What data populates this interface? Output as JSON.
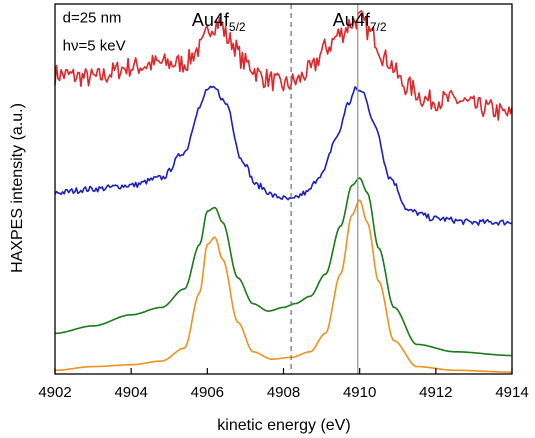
{
  "chart_data": {
    "type": "line",
    "xlabel": "kinetic energy (eV)",
    "ylabel": "HAXPES intensity (a.u.)",
    "xlim": [
      4902,
      4914
    ],
    "ylim": [
      0,
      1
    ],
    "x_ticks": [
      "4902",
      "4904",
      "4906",
      "4908",
      "4910",
      "4912",
      "4914"
    ],
    "y_ticks_shown": false,
    "grid": false,
    "legend": "none",
    "annotations": [
      {
        "text": "d=25 nm",
        "at_x": 4902.2,
        "at_y": 0.95
      },
      {
        "text": "hν=5 keV",
        "at_x": 4902.2,
        "at_y": 0.875
      }
    ],
    "peak_labels": [
      {
        "base": "Au4f",
        "sub": "5/2",
        "at_x": 4906.3
      },
      {
        "base": "Au4f",
        "sub": "7/2",
        "at_x": 4910.0
      }
    ],
    "reference_lines": [
      {
        "x": 4908.2,
        "style": "dashed",
        "color": "#777777"
      },
      {
        "x": 4909.95,
        "style": "solid",
        "color": "#999999"
      }
    ],
    "series": [
      {
        "color": "#e0262a",
        "noise": 0.028,
        "x": [
          4902,
          4903,
          4904,
          4904.8,
          4905.4,
          4905.8,
          4906.1,
          4906.3,
          4906.6,
          4907.0,
          4907.5,
          4908.0,
          4908.3,
          4908.7,
          4909.1,
          4909.5,
          4909.8,
          4910.0,
          4910.3,
          4910.7,
          4911.2,
          4911.8,
          4912.5,
          4913.2,
          4914
        ],
        "y": [
          0.81,
          0.8,
          0.83,
          0.84,
          0.84,
          0.88,
          0.94,
          0.95,
          0.9,
          0.84,
          0.8,
          0.78,
          0.79,
          0.82,
          0.88,
          0.92,
          0.95,
          0.96,
          0.92,
          0.85,
          0.78,
          0.74,
          0.74,
          0.72,
          0.7
        ]
      },
      {
        "color": "#1c1fbf",
        "noise": 0.008,
        "x": [
          4902,
          4903,
          4904,
          4904.8,
          4905.4,
          4905.8,
          4906.0,
          4906.2,
          4906.5,
          4906.9,
          4907.3,
          4907.8,
          4908.2,
          4908.6,
          4909.0,
          4909.4,
          4909.7,
          4909.9,
          4910.1,
          4910.4,
          4910.8,
          4911.3,
          4912.0,
          4913.0,
          4914
        ],
        "y": [
          0.49,
          0.5,
          0.51,
          0.53,
          0.6,
          0.72,
          0.77,
          0.77,
          0.73,
          0.58,
          0.51,
          0.48,
          0.47,
          0.49,
          0.54,
          0.64,
          0.73,
          0.77,
          0.76,
          0.67,
          0.53,
          0.44,
          0.42,
          0.41,
          0.41
        ]
      },
      {
        "color": "#1a7a1a",
        "noise": 0.0,
        "x": [
          4902,
          4903,
          4904,
          4904.8,
          4905.4,
          4905.8,
          4906.0,
          4906.2,
          4906.4,
          4906.8,
          4907.2,
          4907.6,
          4908.0,
          4908.3,
          4908.7,
          4909.1,
          4909.5,
          4909.8,
          4910.0,
          4910.2,
          4910.5,
          4910.9,
          4911.5,
          4912.5,
          4914
        ],
        "y": [
          0.11,
          0.13,
          0.16,
          0.18,
          0.23,
          0.35,
          0.44,
          0.45,
          0.41,
          0.26,
          0.19,
          0.17,
          0.18,
          0.19,
          0.21,
          0.27,
          0.4,
          0.51,
          0.53,
          0.49,
          0.34,
          0.18,
          0.08,
          0.06,
          0.05
        ]
      },
      {
        "color": "#f0901e",
        "noise": 0.0,
        "x": [
          4902,
          4903,
          4904,
          4904.8,
          4905.4,
          4905.8,
          4906.0,
          4906.2,
          4906.4,
          4906.8,
          4907.2,
          4907.7,
          4908.2,
          4908.7,
          4909.1,
          4909.5,
          4909.8,
          4910.0,
          4910.2,
          4910.5,
          4910.9,
          4911.5,
          4912.5,
          4914
        ],
        "y": [
          0.01,
          0.02,
          0.025,
          0.035,
          0.07,
          0.22,
          0.35,
          0.37,
          0.31,
          0.14,
          0.06,
          0.04,
          0.045,
          0.06,
          0.11,
          0.27,
          0.43,
          0.47,
          0.41,
          0.25,
          0.09,
          0.02,
          0.01,
          0.005
        ]
      }
    ]
  }
}
